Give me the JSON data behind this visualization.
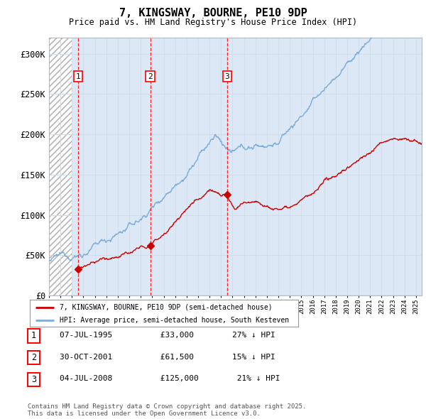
{
  "title": "7, KINGSWAY, BOURNE, PE10 9DP",
  "subtitle": "Price paid vs. HM Land Registry's House Price Index (HPI)",
  "ylabel_ticks": [
    "£0",
    "£50K",
    "£100K",
    "£150K",
    "£200K",
    "£250K",
    "£300K"
  ],
  "ytick_values": [
    0,
    50000,
    100000,
    150000,
    200000,
    250000,
    300000
  ],
  "ylim": [
    0,
    320000
  ],
  "xlim_start": 1993.0,
  "xlim_end": 2025.5,
  "sale_dates": [
    1995.52,
    2001.83,
    2008.52
  ],
  "sale_prices": [
    33000,
    61500,
    125000
  ],
  "sale_labels": [
    "1",
    "2",
    "3"
  ],
  "hpi_color": "#7aabdb",
  "price_color": "#cc0000",
  "legend_label_price": "7, KINGSWAY, BOURNE, PE10 9DP (semi-detached house)",
  "legend_label_hpi": "HPI: Average price, semi-detached house, South Kesteven",
  "table_rows": [
    [
      "1",
      "07-JUL-1995",
      "£33,000",
      "27% ↓ HPI"
    ],
    [
      "2",
      "30-OCT-2001",
      "£61,500",
      "15% ↓ HPI"
    ],
    [
      "3",
      "04-JUL-2008",
      "£125,000",
      "21% ↓ HPI"
    ]
  ],
  "footnote": "Contains HM Land Registry data © Crown copyright and database right 2025.\nThis data is licensed under the Open Government Licence v3.0.",
  "bg_hatch_end": 1995.0,
  "grid_color": "#d0dde8",
  "ax_bg_color": "#dce8f5",
  "background_color": "#ffffff"
}
